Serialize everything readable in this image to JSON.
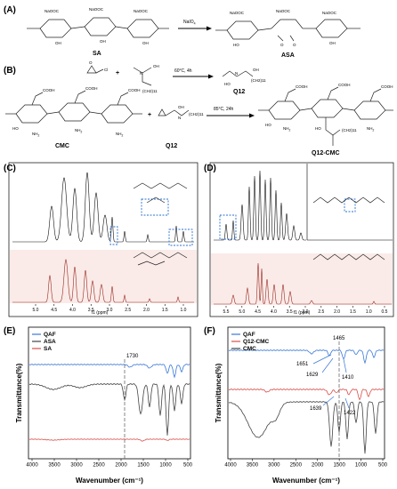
{
  "panels": {
    "A": {
      "label": "(A)",
      "left_compound": "SA",
      "right_compound": "ASA",
      "reagent": "NaIO",
      "reagent_sub": "4",
      "group_label": "NaOOC",
      "oxygen": "O",
      "hydroxyl": "OH",
      "hydroxyl_left": "HO"
    },
    "B": {
      "label": "(B)",
      "step1_condition": "60°C, 4h",
      "step1_product": "Q12",
      "chain": "(CH2)11",
      "chlorine": "Cl",
      "plus": "+",
      "reactant_cmc": "CMC",
      "reactant_q12": "Q12",
      "step2_condition": "85°C, 24h",
      "product": "Q12-CMC",
      "carboxyl": "COOH",
      "amine": "NH",
      "amine_sub": "2",
      "nitrogen": "N",
      "hydroxyl": "OH",
      "hydroxyl_left": "HO",
      "oxygen": "O"
    },
    "C": {
      "label": "(C)",
      "ticks": [
        "5.0",
        "4.5",
        "4.0",
        "3.5",
        "3.0",
        "2.5",
        "2.0",
        "1.5",
        "1.0"
      ],
      "xlabel": "f1 (ppm)"
    },
    "D": {
      "label": "(D)",
      "ticks": [
        "5.5",
        "5.0",
        "4.5",
        "4.0",
        "3.5",
        "3.0",
        "2.5",
        "2.0",
        "1.5",
        "1.0",
        "0.5"
      ],
      "xlabel": "f1 (ppm)"
    },
    "E": {
      "label": "(E)",
      "ylabel": "Transmittance(%)",
      "xlabel": "Wavenumber (cm⁻¹)",
      "xticks": [
        "4000",
        "3500",
        "3000",
        "2500",
        "2000",
        "1500",
        "1000",
        "500"
      ],
      "annotation": "1730",
      "legend": [
        {
          "name": "QAF",
          "color": "#3a78d8"
        },
        {
          "name": "ASA",
          "color": "#444444"
        },
        {
          "name": "SA",
          "color": "#d9504a"
        }
      ]
    },
    "F": {
      "label": "(F)",
      "ylabel": "Transmittance(%)",
      "xlabel": "Wavenumber (cm⁻¹)",
      "xticks": [
        "4000",
        "3500",
        "3000",
        "2500",
        "2000",
        "1500",
        "1000",
        "500"
      ],
      "annotations": [
        "1465",
        "1651",
        "1629",
        "1410",
        "1639",
        "1422"
      ],
      "legend": [
        {
          "name": "QAF",
          "color": "#3a78d8"
        },
        {
          "name": "Q12-CMC",
          "color": "#d9504a"
        },
        {
          "name": "CMC",
          "color": "#444444"
        }
      ]
    }
  },
  "colors": {
    "blue": "#3a78d8",
    "red": "#d9504a",
    "black": "#333333",
    "dashed_box": "#2a6fd0"
  }
}
